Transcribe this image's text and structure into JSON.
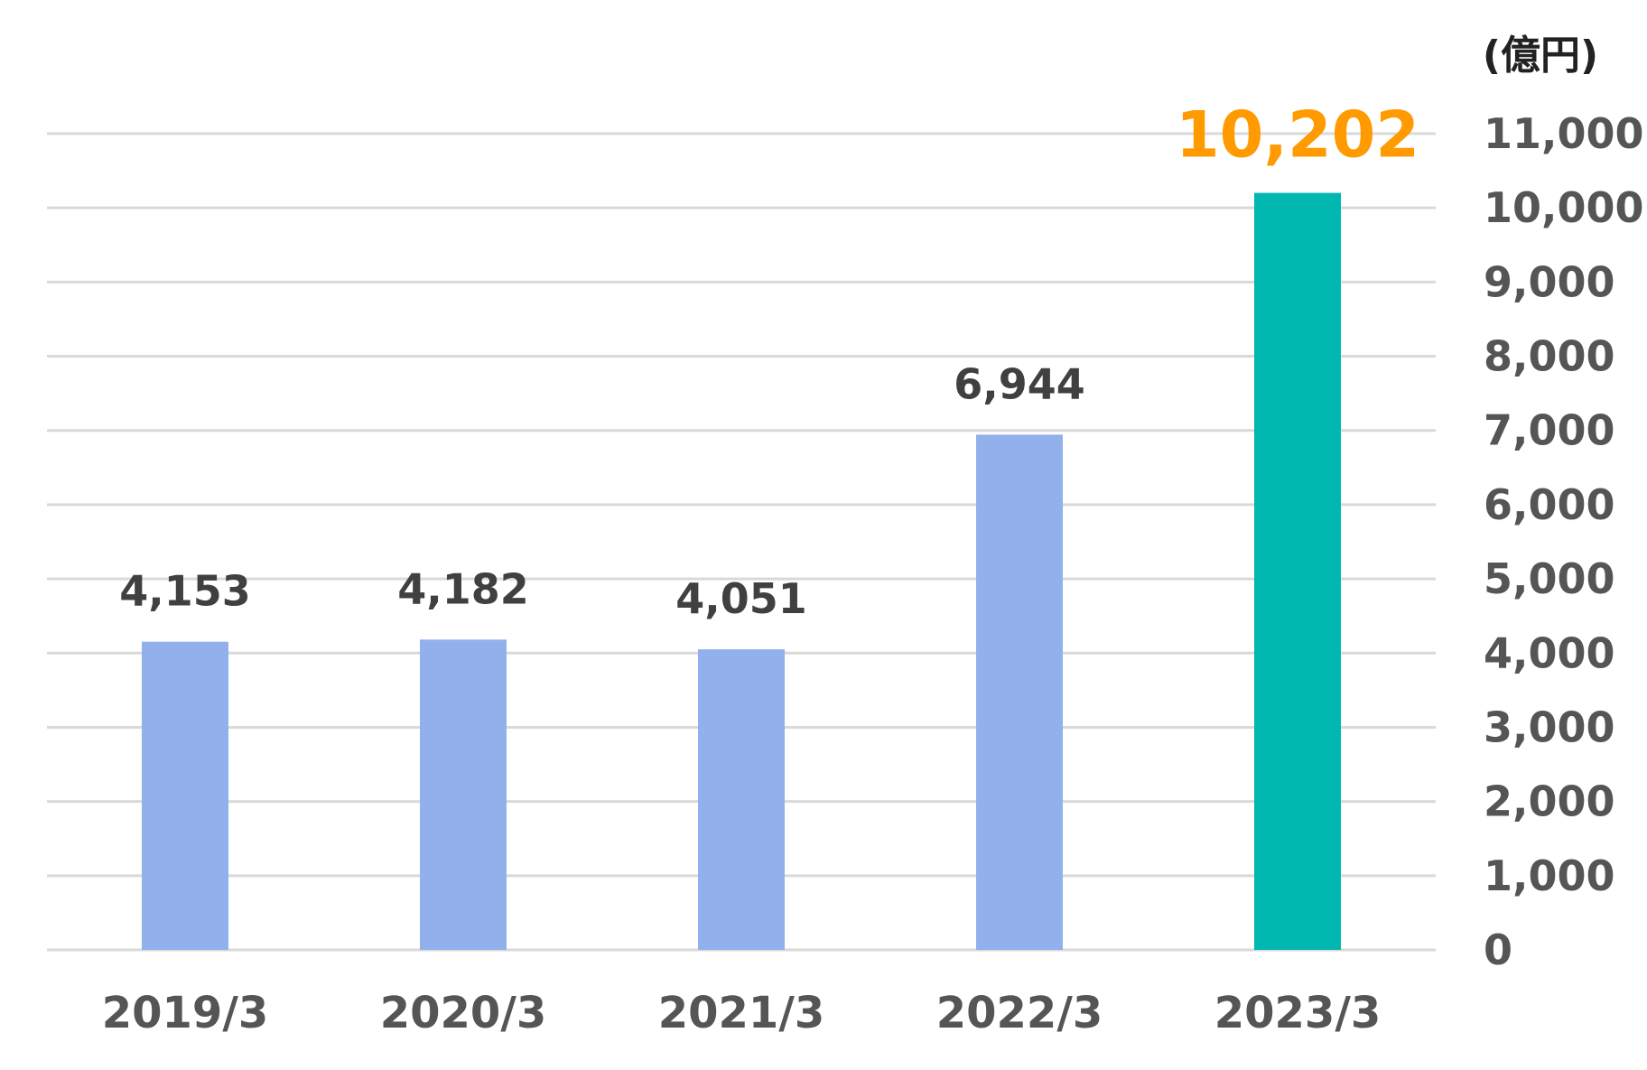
{
  "chart_data": {
    "type": "bar",
    "unit_label": "(億円)",
    "categories": [
      "2019/3",
      "2020/3",
      "2021/3",
      "2022/3",
      "2023/3"
    ],
    "values": [
      4153,
      4182,
      4051,
      6944,
      10202
    ],
    "data_labels": [
      "4,153",
      "4,182",
      "4,051",
      "6,944",
      "10,202"
    ],
    "ylim": [
      0,
      11000
    ],
    "yticks": [
      0,
      1000,
      2000,
      3000,
      4000,
      5000,
      6000,
      7000,
      8000,
      9000,
      10000,
      11000
    ],
    "ytick_labels": [
      "0",
      "1,000",
      "2,000",
      "3,000",
      "4,000",
      "5,000",
      "6,000",
      "7,000",
      "8,000",
      "9,000",
      "10,000",
      "11,000"
    ],
    "y_axis_side": "right",
    "grid": true,
    "highlight_index": 4,
    "colors": {
      "bar": "#92b0ec",
      "highlight_bar": "#00b8b0",
      "highlight_label": "#ff9a00",
      "label": "#404040",
      "tick": "#555555",
      "grid": "#d9d9d9"
    }
  }
}
